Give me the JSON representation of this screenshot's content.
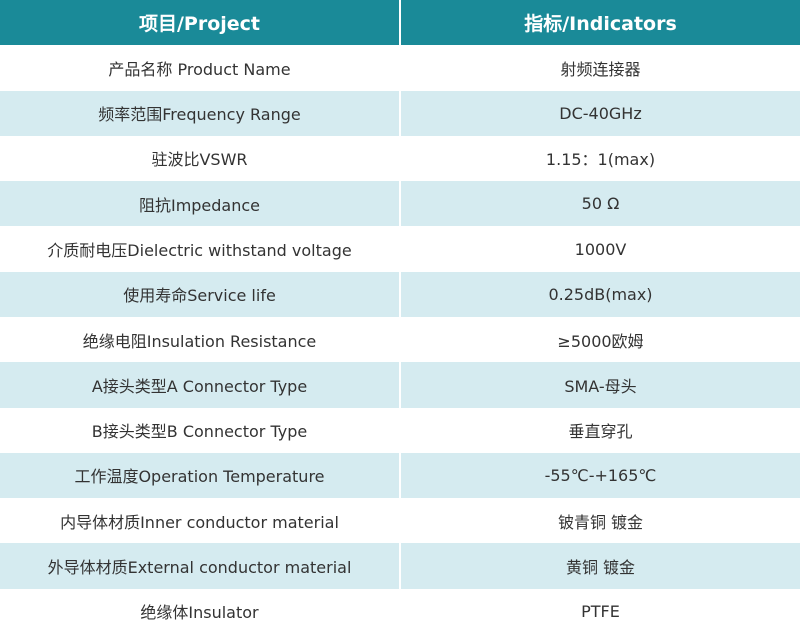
{
  "table": {
    "headers": [
      "项目/Project",
      "指标/Indicators"
    ],
    "rows": [
      [
        "产品名称 Product Name",
        "射频连接器"
      ],
      [
        "频率范围Frequency Range",
        "DC-40GHz"
      ],
      [
        "驻波比VSWR",
        "1.15：1(max)"
      ],
      [
        "阻抗Impedance",
        "50 Ω"
      ],
      [
        "介质耐电压Dielectric withstand voltage",
        "1000V"
      ],
      [
        "使用寿命Service life",
        "0.25dB(max)"
      ],
      [
        "绝缘电阻Insulation Resistance",
        "≥5000欧姆"
      ],
      [
        "A接头类型A Connector Type",
        "SMA-母头"
      ],
      [
        "B接头类型B Connector Type",
        "垂直穿孔"
      ],
      [
        "工作温度Operation Temperature",
        "-55℃-+165℃"
      ],
      [
        "内导体材质Inner conductor material",
        "铍青铜 镀金"
      ],
      [
        "外导体材质External conductor material",
        "黄铜 镀金"
      ],
      [
        "绝缘体Insulator",
        "PTFE"
      ]
    ]
  }
}
